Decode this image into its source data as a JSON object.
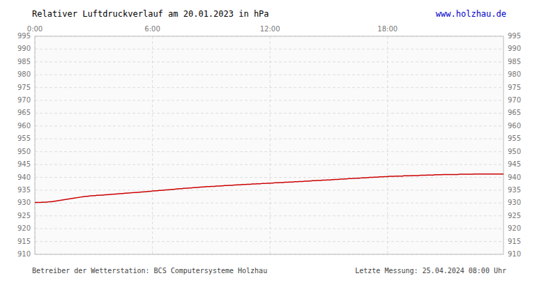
{
  "chart_data": {
    "type": "line",
    "title": "Relativer Luftdruckverlauf am 20.01.2023 in hPa",
    "annotations": [
      "www.holzhau.de",
      "Betreiber der Wetterstation: BCS Computersysteme Holzhau",
      "Letzte Messung: 25.04.2024 08:00 Uhr"
    ],
    "color": "#cc0000",
    "grid": true,
    "xlim": [
      0,
      287
    ],
    "xticks": [
      {
        "value": 0,
        "label": "0:00"
      },
      {
        "value": 72,
        "label": "6:00"
      },
      {
        "value": 144,
        "label": "12:00"
      },
      {
        "value": 216,
        "label": "18:00"
      }
    ],
    "ylim": [
      910,
      995
    ],
    "yticks": [
      910,
      915,
      920,
      925,
      930,
      935,
      940,
      945,
      950,
      955,
      960,
      965,
      970,
      975,
      980,
      985,
      990,
      995
    ],
    "y2lim": [
      910,
      995
    ],
    "y2ticks": [
      910,
      915,
      920,
      925,
      930,
      935,
      940,
      945,
      950,
      955,
      960,
      965,
      970,
      975,
      980,
      985,
      990,
      995
    ],
    "values": [
      930.2,
      930.2,
      930.2,
      930.2,
      930.3,
      930.3,
      930.3,
      930.4,
      930.4,
      930.5,
      930.5,
      930.6,
      930.7,
      930.8,
      930.9,
      931.0,
      931.1,
      931.2,
      931.3,
      931.4,
      931.5,
      931.6,
      931.7,
      931.8,
      931.9,
      932.0,
      932.1,
      932.2,
      932.3,
      932.4,
      932.5,
      932.6,
      932.6,
      932.7,
      932.8,
      932.8,
      932.9,
      932.9,
      933.0,
      933.0,
      933.0,
      933.1,
      933.1,
      933.2,
      933.2,
      933.3,
      933.3,
      933.4,
      933.4,
      933.5,
      933.5,
      933.6,
      933.6,
      933.7,
      933.7,
      933.8,
      933.8,
      933.9,
      933.9,
      934.0,
      934.0,
      934.1,
      934.1,
      934.2,
      934.2,
      934.3,
      934.3,
      934.4,
      934.4,
      934.5,
      934.5,
      934.6,
      934.7,
      934.7,
      934.8,
      934.8,
      934.9,
      934.9,
      935.0,
      935.0,
      935.1,
      935.1,
      935.2,
      935.2,
      935.3,
      935.3,
      935.4,
      935.5,
      935.5,
      935.6,
      935.6,
      935.7,
      935.7,
      935.8,
      935.8,
      935.9,
      935.9,
      936.0,
      936.0,
      936.1,
      936.1,
      936.2,
      936.2,
      936.3,
      936.3,
      936.4,
      936.4,
      936.4,
      936.5,
      936.5,
      936.5,
      936.6,
      936.6,
      936.6,
      936.7,
      936.7,
      936.8,
      936.8,
      936.8,
      936.9,
      936.9,
      936.9,
      937.0,
      937.0,
      937.1,
      937.1,
      937.1,
      937.2,
      937.2,
      937.2,
      937.3,
      937.3,
      937.3,
      937.4,
      937.4,
      937.4,
      937.5,
      937.5,
      937.5,
      937.6,
      937.6,
      937.6,
      937.7,
      937.7,
      937.7,
      937.8,
      937.8,
      937.9,
      937.9,
      937.9,
      938.0,
      938.0,
      938.0,
      938.1,
      938.1,
      938.1,
      938.2,
      938.2,
      938.2,
      938.3,
      938.3,
      938.3,
      938.4,
      938.4,
      938.4,
      938.5,
      938.5,
      938.5,
      938.6,
      938.6,
      938.7,
      938.7,
      938.7,
      938.8,
      938.8,
      938.8,
      938.9,
      938.9,
      938.9,
      939.0,
      939.0,
      939.0,
      939.1,
      939.1,
      939.2,
      939.2,
      939.2,
      939.3,
      939.3,
      939.3,
      939.4,
      939.4,
      939.5,
      939.5,
      939.5,
      939.6,
      939.6,
      939.7,
      939.7,
      939.7,
      939.8,
      939.8,
      939.8,
      939.9,
      939.9,
      940.0,
      940.0,
      940.0,
      940.1,
      940.1,
      940.1,
      940.2,
      940.2,
      940.2,
      940.3,
      940.3,
      940.3,
      940.4,
      940.4,
      940.4,
      940.4,
      940.5,
      940.5,
      940.5,
      940.5,
      940.5,
      940.6,
      940.6,
      940.6,
      940.6,
      940.6,
      940.7,
      940.7,
      940.7,
      940.7,
      940.7,
      940.8,
      940.8,
      940.8,
      940.8,
      940.9,
      940.9,
      940.9,
      940.9,
      940.9,
      941.0,
      941.0,
      941.0,
      941.0,
      941.0,
      941.1,
      941.1,
      941.1,
      941.1,
      941.1,
      941.1,
      941.1,
      941.1,
      941.1,
      941.1,
      941.2,
      941.2,
      941.2,
      941.2,
      941.2,
      941.2,
      941.2,
      941.2,
      941.2,
      941.3,
      941.3,
      941.3,
      941.3,
      941.3,
      941.3,
      941.3,
      941.3,
      941.3,
      941.3,
      941.3,
      941.3,
      941.3,
      941.3,
      941.3,
      941.3,
      941.3,
      941.3,
      941.3
    ]
  }
}
